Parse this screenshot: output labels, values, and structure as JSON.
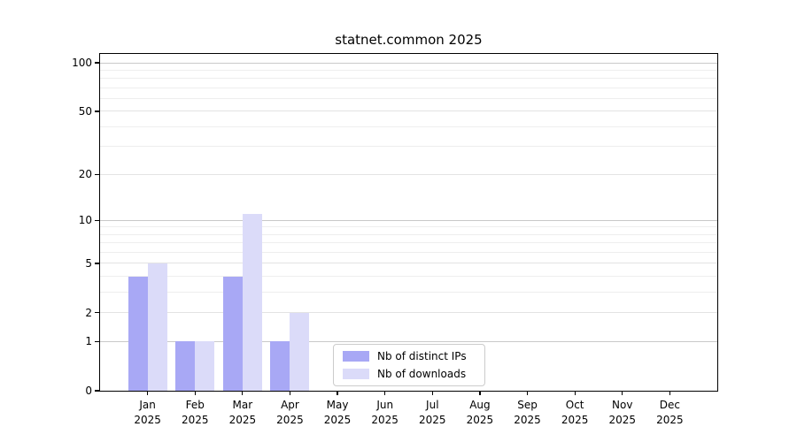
{
  "chart_data": {
    "type": "bar",
    "title": "statnet.common 2025",
    "categories": [
      "Jan",
      "Feb",
      "Mar",
      "Apr",
      "May",
      "Jun",
      "Jul",
      "Aug",
      "Sep",
      "Oct",
      "Nov",
      "Dec"
    ],
    "year_label": "2025",
    "series": [
      {
        "name": "Nb of distinct IPs",
        "color": "#a8a8f5",
        "values": [
          4,
          1,
          4,
          1,
          0,
          0,
          0,
          0,
          0,
          0,
          0,
          0
        ]
      },
      {
        "name": "Nb of downloads",
        "color": "#dbdbf9",
        "values": [
          5,
          1,
          11,
          2,
          0,
          0,
          0,
          0,
          0,
          0,
          0,
          0
        ]
      }
    ],
    "yscale": "log1p",
    "ylim": [
      0,
      100
    ],
    "ytick_values": [
      100,
      50,
      20,
      10,
      5,
      2,
      1,
      0
    ],
    "ytick_labels": [
      "100",
      "50",
      "20",
      "10",
      "5",
      "2",
      "1",
      "0"
    ],
    "gridline_values": [
      1,
      2,
      3,
      4,
      5,
      6,
      7,
      8,
      9,
      10,
      20,
      30,
      40,
      50,
      60,
      70,
      80,
      90,
      100
    ],
    "grid": true,
    "legend_position": "lower center",
    "xlabel": "",
    "ylabel": ""
  }
}
